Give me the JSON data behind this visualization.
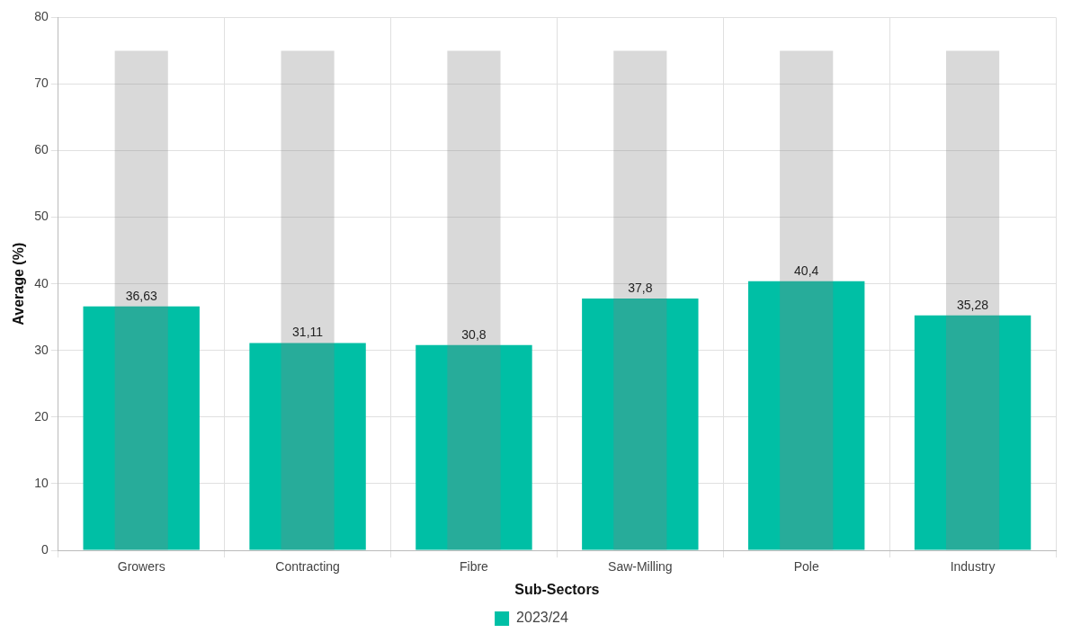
{
  "chart_data": {
    "type": "bar",
    "xlabel": "Sub-Sectors",
    "ylabel": "Average (%)",
    "categories": [
      "Growers",
      "Contracting",
      "Fibre",
      "Saw-Milling",
      "Pole",
      "Industry"
    ],
    "series": [
      {
        "name": "2023/24",
        "color": "#00bfa5",
        "values": [
          36.63,
          31.11,
          30.8,
          37.8,
          40.4,
          35.28
        ],
        "value_labels": [
          "36,63",
          "31,11",
          "30,8",
          "37,8",
          "40,4",
          "35,28"
        ]
      },
      {
        "color": "#d9d9d9",
        "values": [
          75,
          75,
          75,
          75,
          75,
          75
        ]
      }
    ],
    "ylim": [
      0,
      80
    ],
    "yticks": [
      0,
      10,
      20,
      30,
      40,
      50,
      60,
      70,
      80
    ],
    "grid": true,
    "legend": "bottom"
  }
}
